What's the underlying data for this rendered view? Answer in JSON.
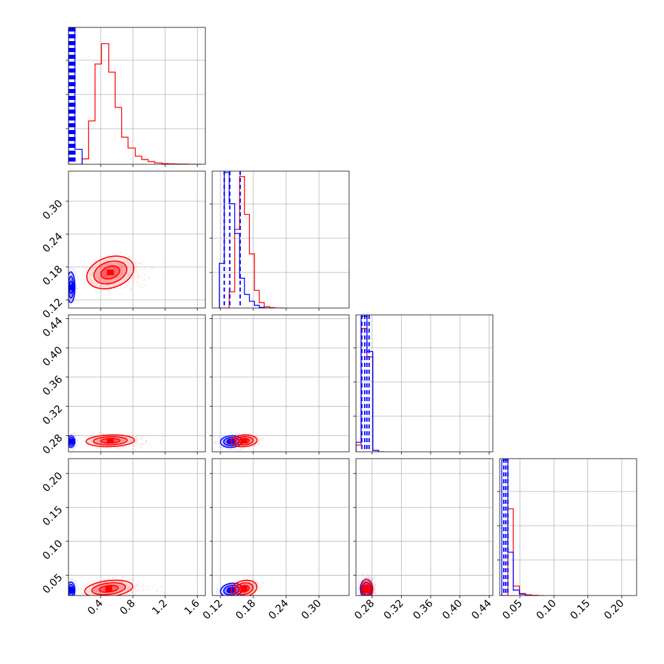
{
  "chart_data": {
    "type": "corner",
    "grid": true,
    "colors": {
      "blue": "#0000ff",
      "red": "#ff0000"
    },
    "series": [
      {
        "color_key": "blue"
      },
      {
        "color_key": "red"
      }
    ],
    "parameters": [
      {
        "range": [
          0.0,
          1.7
        ],
        "ticks": [
          0.4,
          0.8,
          1.2,
          1.6
        ],
        "tick_labels": [
          "0.4",
          "0.8",
          "1.2",
          "1.6"
        ]
      },
      {
        "range": [
          0.105,
          0.355
        ],
        "ticks": [
          0.12,
          0.18,
          0.24,
          0.3
        ],
        "tick_labels": [
          "0.12",
          "0.18",
          "0.24",
          "0.30"
        ]
      },
      {
        "range": [
          0.258,
          0.445
        ],
        "ticks": [
          0.28,
          0.32,
          0.36,
          0.4,
          0.44
        ],
        "tick_labels": [
          "0.28",
          "0.32",
          "0.36",
          "0.40",
          "0.44"
        ]
      },
      {
        "range": [
          0.02,
          0.222
        ],
        "ticks": [
          0.05,
          0.1,
          0.15,
          0.2
        ],
        "tick_labels": [
          "0.05",
          "0.10",
          "0.15",
          "0.20"
        ]
      }
    ],
    "histograms": [
      {
        "blue": {
          "bins": [
            0.0,
            0.08,
            0.17
          ],
          "counts": [
            1.0,
            0.11
          ],
          "quantiles": [
            0.01,
            0.02,
            0.03,
            0.04,
            0.05,
            0.06,
            0.07,
            0.08
          ]
        },
        "red": {
          "bins": [
            0.0,
            0.17,
            0.25,
            0.33,
            0.41,
            0.5,
            0.58,
            0.66,
            0.74,
            0.83,
            0.91,
            0.99,
            1.07,
            1.16,
            1.24,
            1.32,
            1.4,
            1.49,
            1.57,
            1.65
          ],
          "counts": [
            0.0,
            0.04,
            0.32,
            0.74,
            0.89,
            0.68,
            0.42,
            0.2,
            0.12,
            0.06,
            0.035,
            0.02,
            0.01,
            0.005,
            0.003,
            0.002,
            0.001,
            0.0,
            0.0
          ]
        }
      },
      {
        "blue": {
          "bins": [
            0.118,
            0.127,
            0.136,
            0.146,
            0.155,
            0.164,
            0.173,
            0.182,
            0.191,
            0.2,
            0.21
          ],
          "counts": [
            0.33,
            1.0,
            0.77,
            0.55,
            0.22,
            0.1,
            0.05,
            0.02,
            0.005,
            0.0
          ],
          "quantiles": [
            0.127,
            0.137,
            0.156
          ]
        },
        "red": {
          "bins": [
            0.118,
            0.127,
            0.136,
            0.146,
            0.155,
            0.164,
            0.173,
            0.182,
            0.191,
            0.2,
            0.21,
            0.219,
            0.228,
            0.237
          ],
          "counts": [
            0.0,
            0.0,
            0.12,
            0.58,
            0.97,
            0.69,
            0.4,
            0.13,
            0.04,
            0.01,
            0.003,
            0.0,
            0.0
          ]
        }
      },
      {
        "blue": {
          "bins": [
            0.258,
            0.265,
            0.273,
            0.281,
            0.289
          ],
          "counts": [
            0.07,
            1.0,
            0.74,
            0.01
          ],
          "quantiles": [
            0.266,
            0.27,
            0.273,
            0.276
          ]
        },
        "red": {
          "bins": [
            0.258,
            0.265,
            0.273,
            0.281,
            0.289,
            0.297
          ],
          "counts": [
            0.05,
            0.91,
            0.7,
            0.01,
            0.0
          ]
        }
      },
      {
        "blue": {
          "bins": [
            0.023,
            0.032,
            0.04,
            0.049,
            0.058,
            0.067
          ],
          "counts": [
            1.0,
            0.32,
            0.04,
            0.01,
            0.0
          ],
          "quantiles": [
            0.026,
            0.029,
            0.032
          ]
        },
        "red": {
          "bins": [
            0.023,
            0.032,
            0.04,
            0.049,
            0.058,
            0.067,
            0.076,
            0.085
          ],
          "counts": [
            0.0,
            0.64,
            0.07,
            0.015,
            0.005,
            0.002,
            0.0
          ]
        }
      }
    ],
    "joint_posteriors": [
      {
        "x_param": 0,
        "y_param": 1,
        "blue": {
          "center": [
            0.03,
            0.143
          ],
          "spread": [
            0.025,
            0.014
          ],
          "corr": 0.0
        },
        "red": {
          "center": [
            0.52,
            0.17
          ],
          "spread": [
            0.15,
            0.014
          ],
          "corr": 0.55
        }
      },
      {
        "x_param": 0,
        "y_param": 2,
        "blue": {
          "center": [
            0.03,
            0.272
          ],
          "spread": [
            0.025,
            0.004
          ],
          "corr": 0.0
        },
        "red": {
          "center": [
            0.52,
            0.273
          ],
          "spread": [
            0.15,
            0.004
          ],
          "corr": 0.05
        }
      },
      {
        "x_param": 1,
        "y_param": 2,
        "blue": {
          "center": [
            0.14,
            0.272
          ],
          "spread": [
            0.01,
            0.004
          ],
          "corr": 0.1
        },
        "red": {
          "center": [
            0.163,
            0.273
          ],
          "spread": [
            0.012,
            0.004
          ],
          "corr": 0.1
        }
      },
      {
        "x_param": 0,
        "y_param": 3,
        "blue": {
          "center": [
            0.03,
            0.028
          ],
          "spread": [
            0.025,
            0.006
          ],
          "corr": 0.0
        },
        "red": {
          "center": [
            0.5,
            0.03
          ],
          "spread": [
            0.15,
            0.006
          ],
          "corr": 0.2
        }
      },
      {
        "x_param": 1,
        "y_param": 3,
        "blue": {
          "center": [
            0.14,
            0.028
          ],
          "spread": [
            0.01,
            0.005
          ],
          "corr": 0.3
        },
        "red": {
          "center": [
            0.163,
            0.03
          ],
          "spread": [
            0.012,
            0.006
          ],
          "corr": 0.4
        }
      },
      {
        "x_param": 2,
        "y_param": 3,
        "blue": {
          "center": [
            0.272,
            0.03
          ],
          "spread": [
            0.004,
            0.007
          ],
          "corr": 0.0
        },
        "red": {
          "center": [
            0.273,
            0.03
          ],
          "spread": [
            0.004,
            0.007
          ],
          "corr": 0.1
        }
      }
    ]
  }
}
